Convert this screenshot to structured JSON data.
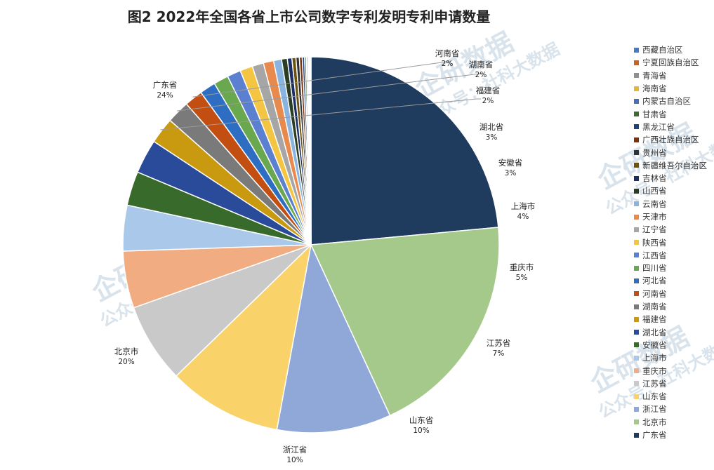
{
  "chart_data": {
    "type": "pie",
    "title": "图2 2022年全国各省上市公司数字专利发明专利申请数量",
    "slices": [
      {
        "name": "广东省",
        "value": 24,
        "label": "24%",
        "color": "#1f3c5e"
      },
      {
        "name": "北京市",
        "value": 20,
        "label": "20%",
        "color": "#a5c98a"
      },
      {
        "name": "浙江省",
        "value": 10,
        "label": "10%",
        "color": "#8fa8d8"
      },
      {
        "name": "山东省",
        "value": 10,
        "label": "10%",
        "color": "#f9d36a"
      },
      {
        "name": "江苏省",
        "value": 7,
        "label": "7%",
        "color": "#c9c9c9"
      },
      {
        "name": "重庆市",
        "value": 5,
        "label": "5%",
        "color": "#f2ac82"
      },
      {
        "name": "上海市",
        "value": 4,
        "label": "4%",
        "color": "#a9c8ea"
      },
      {
        "name": "安徽省",
        "value": 3,
        "label": "3%",
        "color": "#386a2c"
      },
      {
        "name": "湖北省",
        "value": 3,
        "label": "3%",
        "color": "#2a4a9a"
      },
      {
        "name": "福建省",
        "value": 2.3,
        "label": "2%",
        "color": "#c99a10"
      },
      {
        "name": "湖南省",
        "value": 2,
        "label": "2%",
        "color": "#7a7a7a"
      },
      {
        "name": "河南省",
        "value": 1.6,
        "label": "2%",
        "color": "#c24e12"
      },
      {
        "name": "河北省",
        "value": 1.4,
        "label": "",
        "color": "#2e6ec2"
      },
      {
        "name": "四川省",
        "value": 1.3,
        "label": "",
        "color": "#6aa84f"
      },
      {
        "name": "江西省",
        "value": 1.2,
        "label": "",
        "color": "#5b80d0"
      },
      {
        "name": "陕西省",
        "value": 1.1,
        "label": "",
        "color": "#f4c542"
      },
      {
        "name": "辽宁省",
        "value": 1.0,
        "label": "",
        "color": "#a6a6a6"
      },
      {
        "name": "天津市",
        "value": 0.9,
        "label": "",
        "color": "#e8894e"
      },
      {
        "name": "云南省",
        "value": 0.7,
        "label": "",
        "color": "#8ab4e0"
      },
      {
        "name": "山西省",
        "value": 0.5,
        "label": "",
        "color": "#2b3d25"
      },
      {
        "name": "吉林省",
        "value": 0.4,
        "label": "",
        "color": "#1b2f66"
      },
      {
        "name": "新疆维吾尔自治区",
        "value": 0.35,
        "label": "",
        "color": "#6b5210"
      },
      {
        "name": "贵州省",
        "value": 0.3,
        "label": "",
        "color": "#333333"
      },
      {
        "name": "广西壮族自治区",
        "value": 0.25,
        "label": "",
        "color": "#7a3210"
      },
      {
        "name": "黑龙江省",
        "value": 0.2,
        "label": "",
        "color": "#1f4478"
      },
      {
        "name": "甘肃省",
        "value": 0.15,
        "label": "",
        "color": "#3d6b2a"
      },
      {
        "name": "内蒙古自治区",
        "value": 0.12,
        "label": "",
        "color": "#4a6fb5"
      },
      {
        "name": "海南省",
        "value": 0.1,
        "label": "",
        "color": "#e6b730"
      },
      {
        "name": "青海省",
        "value": 0.08,
        "label": "",
        "color": "#909090"
      },
      {
        "name": "宁夏回族自治区",
        "value": 0.06,
        "label": "",
        "color": "#c0652a"
      },
      {
        "name": "西藏自治区",
        "value": 0.05,
        "label": "",
        "color": "#4a7bbd"
      }
    ],
    "legend_position": "right"
  },
  "legend": {
    "entries": [
      {
        "name": "西藏自治区",
        "color": "#4a7bbd"
      },
      {
        "name": "宁夏回族自治区",
        "color": "#c0652a"
      },
      {
        "name": "青海省",
        "color": "#909090"
      },
      {
        "name": "海南省",
        "color": "#e6b730"
      },
      {
        "name": "内蒙古自治区",
        "color": "#4a6fb5"
      },
      {
        "name": "甘肃省",
        "color": "#3d6b2a"
      },
      {
        "name": "黑龙江省",
        "color": "#1f4478"
      },
      {
        "name": "广西壮族自治区",
        "color": "#7a3210"
      },
      {
        "name": "贵州省",
        "color": "#333333"
      },
      {
        "name": "新疆维吾尔自治区",
        "color": "#6b5210"
      },
      {
        "name": "吉林省",
        "color": "#1b2f66"
      },
      {
        "name": "山西省",
        "color": "#2b3d25"
      },
      {
        "name": "云南省",
        "color": "#8ab4e0"
      },
      {
        "name": "天津市",
        "color": "#e8894e"
      },
      {
        "name": "辽宁省",
        "color": "#a6a6a6"
      },
      {
        "name": "陕西省",
        "color": "#f4c542"
      },
      {
        "name": "江西省",
        "color": "#5b80d0"
      },
      {
        "name": "四川省",
        "color": "#6aa84f"
      },
      {
        "name": "河北省",
        "color": "#2e6ec2"
      },
      {
        "name": "河南省",
        "color": "#c24e12"
      },
      {
        "name": "湖南省",
        "color": "#7a7a7a"
      },
      {
        "name": "福建省",
        "color": "#c99a10"
      },
      {
        "name": "湖北省",
        "color": "#2a4a9a"
      },
      {
        "name": "安徽省",
        "color": "#386a2c"
      },
      {
        "name": "上海市",
        "color": "#a9c8ea"
      },
      {
        "name": "重庆市",
        "color": "#f2ac82"
      },
      {
        "name": "江苏省",
        "color": "#c9c9c9"
      },
      {
        "name": "山东省",
        "color": "#f9d36a"
      },
      {
        "name": "浙江省",
        "color": "#8fa8d8"
      },
      {
        "name": "北京市",
        "color": "#a5c98a"
      },
      {
        "name": "广东省",
        "color": "#1f3c5e"
      }
    ]
  },
  "watermark": {
    "brand": "企研数据",
    "subtitle": "公众号：社科大数据",
    "color": "#d9e3ec"
  }
}
